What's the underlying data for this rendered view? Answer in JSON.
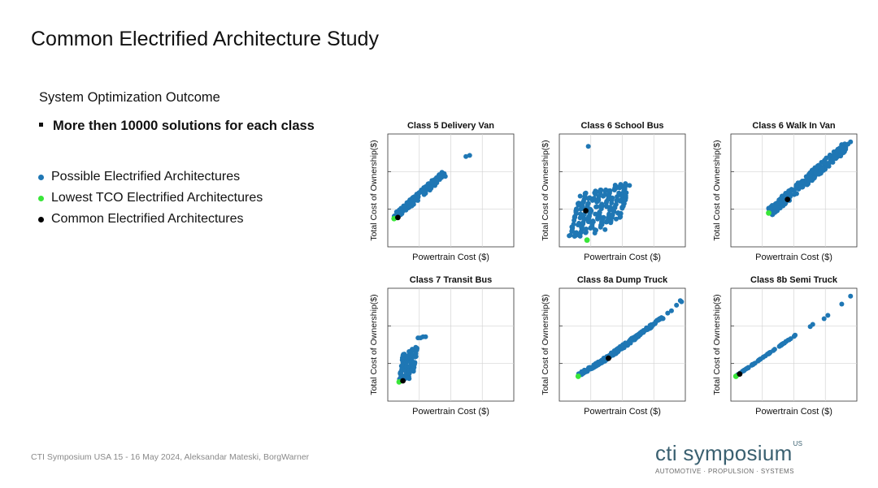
{
  "slide": {
    "title": "Common Electrified Architecture Study",
    "subtitle": "System Optimization Outcome",
    "bullet": "More then 10000 solutions for each class",
    "footer": "CTI Symposium USA 15 - 16 May 2024, Aleksandar Mateski, BorgWarner",
    "logo": {
      "word": "cti symposium",
      "sup": "US",
      "tagline": "AUTOMOTIVE · PROPULSION · SYSTEMS"
    },
    "legend": [
      {
        "label": "Possible Electrified Architectures",
        "color": "#1f77b4"
      },
      {
        "label": "Lowest TCO Electrified Architectures",
        "color": "#39e639"
      },
      {
        "label": "Common Electrified Architectures",
        "color": "#000000"
      }
    ]
  },
  "chart_data": [
    {
      "type": "scatter",
      "title": "Class 5 Delivery Van",
      "xlabel": "Powertrain Cost ($)",
      "ylabel": "Total Cost of Ownership($)",
      "xlim": [
        0,
        10
      ],
      "ylim": [
        0,
        10
      ],
      "grid": true,
      "series": [
        {
          "name": "Possible Electrified Architectures",
          "color": "#1f77b4",
          "segments": [
            {
              "from": [
                0.5,
                2.6
              ],
              "to": [
                4.5,
                6.5
              ],
              "width": 0.5,
              "count": 130
            }
          ],
          "points": [
            [
              6.2,
              8.0
            ],
            [
              6.5,
              8.1
            ],
            [
              4.3,
              6.6
            ]
          ]
        },
        {
          "name": "Lowest TCO Electrified Architectures",
          "color": "#39e639",
          "points": [
            [
              0.5,
              2.5
            ]
          ]
        },
        {
          "name": "Common Electrified Architectures",
          "color": "#000000",
          "points": [
            [
              0.8,
              2.6
            ]
          ]
        }
      ]
    },
    {
      "type": "scatter",
      "title": "Class 6 School Bus",
      "xlabel": "Powertrain Cost ($)",
      "ylabel": "Total Cost of Ownership($)",
      "xlim": [
        0,
        10
      ],
      "ylim": [
        0,
        10
      ],
      "grid": true,
      "series": [
        {
          "name": "Possible Electrified Architectures",
          "color": "#1f77b4",
          "segments": [
            {
              "from": [
                0.8,
                0.8
              ],
              "to": [
                1.7,
                4.6
              ],
              "width": 0.12,
              "count": 22
            },
            {
              "from": [
                1.2,
                0.8
              ],
              "to": [
                2.1,
                4.8
              ],
              "width": 0.12,
              "count": 22
            },
            {
              "from": [
                1.6,
                0.9
              ],
              "to": [
                2.5,
                5.0
              ],
              "width": 0.12,
              "count": 22
            },
            {
              "from": [
                2.0,
                1.0
              ],
              "to": [
                2.9,
                5.1
              ],
              "width": 0.12,
              "count": 22
            },
            {
              "from": [
                2.4,
                1.1
              ],
              "to": [
                3.3,
                5.2
              ],
              "width": 0.12,
              "count": 22
            },
            {
              "from": [
                2.8,
                1.2
              ],
              "to": [
                3.7,
                5.3
              ],
              "width": 0.12,
              "count": 22
            },
            {
              "from": [
                3.2,
                1.3
              ],
              "to": [
                4.1,
                5.4
              ],
              "width": 0.12,
              "count": 22
            },
            {
              "from": [
                3.6,
                1.5
              ],
              "to": [
                4.5,
                5.5
              ],
              "width": 0.12,
              "count": 22
            },
            {
              "from": [
                4.0,
                1.8
              ],
              "to": [
                4.9,
                5.6
              ],
              "width": 0.12,
              "count": 22
            },
            {
              "from": [
                4.4,
                2.2
              ],
              "to": [
                5.3,
                5.7
              ],
              "width": 0.12,
              "count": 20
            },
            {
              "from": [
                4.8,
                2.6
              ],
              "to": [
                5.6,
                5.8
              ],
              "width": 0.12,
              "count": 18
            }
          ],
          "points": [
            [
              2.3,
              8.9
            ]
          ]
        },
        {
          "name": "Lowest TCO Electrified Architectures",
          "color": "#39e639",
          "points": [
            [
              2.2,
              0.6
            ]
          ]
        },
        {
          "name": "Common Electrified Architectures",
          "color": "#000000",
          "points": [
            [
              2.1,
              3.2
            ]
          ]
        }
      ]
    },
    {
      "type": "scatter",
      "title": "Class 6 Walk In Van",
      "xlabel": "Powertrain Cost ($)",
      "ylabel": "Total Cost of Ownership($)",
      "xlim": [
        0,
        10
      ],
      "ylim": [
        0,
        10
      ],
      "grid": true,
      "series": [
        {
          "name": "Possible Electrified Architectures",
          "color": "#1f77b4",
          "segments": [
            {
              "from": [
                3.0,
                3.0
              ],
              "to": [
                9.2,
                9.0
              ],
              "width": 0.7,
              "count": 260
            }
          ],
          "points": [
            [
              9.5,
              9.3
            ],
            [
              9.3,
              9.1
            ]
          ]
        },
        {
          "name": "Lowest TCO Electrified Architectures",
          "color": "#39e639",
          "points": [
            [
              3.0,
              3.0
            ]
          ]
        },
        {
          "name": "Common Electrified Architectures",
          "color": "#000000",
          "points": [
            [
              4.5,
              4.2
            ]
          ]
        }
      ]
    },
    {
      "type": "scatter",
      "title": "Class 7 Transit Bus",
      "xlabel": "Powertrain Cost ($)",
      "ylabel": "Total Cost of Ownership($)",
      "xlim": [
        0,
        10
      ],
      "ylim": [
        0,
        10
      ],
      "grid": true,
      "series": [
        {
          "name": "Possible Electrified Architectures",
          "color": "#1f77b4",
          "segments": [
            {
              "from": [
                1.0,
                1.8
              ],
              "to": [
                1.3,
                4.2
              ],
              "width": 0.2,
              "count": 40
            },
            {
              "from": [
                1.3,
                1.8
              ],
              "to": [
                1.7,
                4.4
              ],
              "width": 0.2,
              "count": 40
            },
            {
              "from": [
                1.6,
                2.0
              ],
              "to": [
                2.0,
                4.6
              ],
              "width": 0.2,
              "count": 40
            },
            {
              "from": [
                1.9,
                2.4
              ],
              "to": [
                2.3,
                4.8
              ],
              "width": 0.2,
              "count": 30
            }
          ],
          "points": [
            [
              2.4,
              5.6
            ],
            [
              2.6,
              5.6
            ],
            [
              2.8,
              5.7
            ],
            [
              3.0,
              5.7
            ]
          ]
        },
        {
          "name": "Lowest TCO Electrified Architectures",
          "color": "#39e639",
          "points": [
            [
              0.9,
              1.7
            ]
          ]
        },
        {
          "name": "Common Electrified Architectures",
          "color": "#000000",
          "points": [
            [
              1.2,
              1.8
            ]
          ]
        }
      ]
    },
    {
      "type": "scatter",
      "title": "Class 8a Dump Truck",
      "xlabel": "Powertrain Cost ($)",
      "ylabel": "Total Cost of Ownership($)",
      "xlim": [
        0,
        10
      ],
      "ylim": [
        0,
        10
      ],
      "grid": true,
      "series": [
        {
          "name": "Possible Electrified Architectures",
          "color": "#1f77b4",
          "segments": [
            {
              "from": [
                1.5,
                2.3
              ],
              "to": [
                3.5,
                3.6
              ],
              "width": 0.22,
              "count": 60
            },
            {
              "from": [
                3.5,
                3.6
              ],
              "to": [
                6.0,
                5.6
              ],
              "width": 0.3,
              "count": 90
            },
            {
              "from": [
                6.0,
                5.6
              ],
              "to": [
                8.2,
                7.4
              ],
              "width": 0.22,
              "count": 60
            }
          ],
          "points": [
            [
              8.6,
              7.8
            ],
            [
              8.9,
              8.0
            ],
            [
              9.3,
              8.5
            ],
            [
              9.6,
              8.9
            ],
            [
              9.7,
              8.8
            ]
          ]
        },
        {
          "name": "Lowest TCO Electrified Architectures",
          "color": "#39e639",
          "points": [
            [
              1.5,
              2.2
            ]
          ]
        },
        {
          "name": "Common Electrified Architectures",
          "color": "#000000",
          "points": [
            [
              3.9,
              3.8
            ]
          ]
        }
      ]
    },
    {
      "type": "scatter",
      "title": "Class 8b Semi Truck",
      "xlabel": "Powertrain Cost ($)",
      "ylabel": "Total Cost of Ownership($)",
      "xlim": [
        0,
        10
      ],
      "ylim": [
        0,
        10
      ],
      "grid": true,
      "series": [
        {
          "name": "Possible Electrified Architectures",
          "color": "#1f77b4",
          "segments": [
            {
              "from": [
                0.5,
                2.3
              ],
              "to": [
                5.2,
                5.9
              ],
              "width": 0.05,
              "count": 60
            }
          ],
          "points": [
            [
              6.3,
              6.6
            ],
            [
              6.5,
              6.8
            ],
            [
              7.4,
              7.3
            ],
            [
              7.7,
              7.6
            ],
            [
              8.8,
              8.6
            ],
            [
              9.5,
              9.3
            ]
          ]
        },
        {
          "name": "Lowest TCO Electrified Architectures",
          "color": "#39e639",
          "points": [
            [
              0.4,
              2.2
            ]
          ]
        },
        {
          "name": "Common Electrified Architectures",
          "color": "#000000",
          "points": [
            [
              0.7,
              2.4
            ]
          ]
        }
      ]
    }
  ]
}
